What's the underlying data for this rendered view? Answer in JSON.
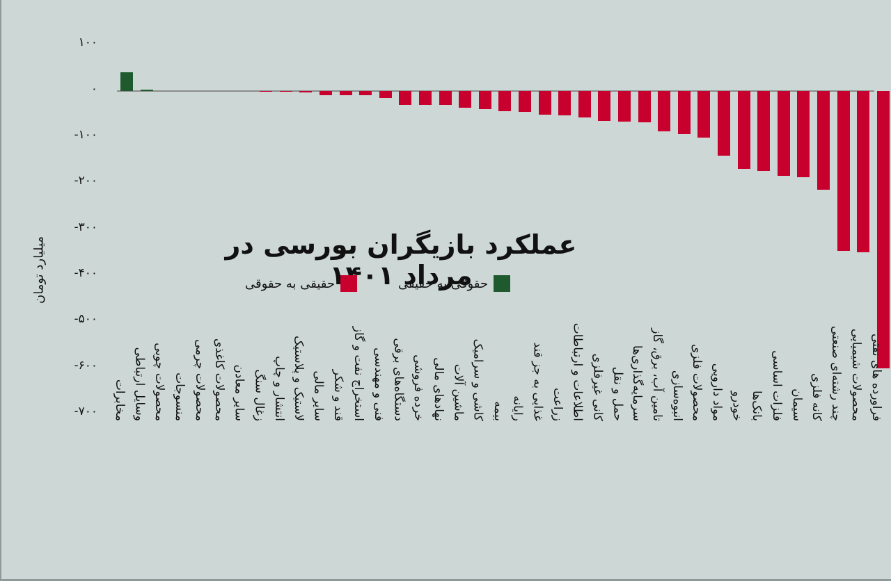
{
  "chart_data": {
    "type": "bar",
    "title": "عملکرد بازیگران بورسی در مرداد ۱۴۰۱",
    "xlabel": "",
    "ylabel": "میلیارد تومان",
    "ylim": [
      -700,
      100
    ],
    "yticks": [
      100,
      0,
      -100,
      -200,
      -300,
      -400,
      -500,
      -600,
      -700
    ],
    "ytick_labels": [
      "۱۰۰",
      "۰",
      "-۱۰۰",
      "-۲۰۰",
      "-۳۰۰",
      "-۴۰۰",
      "-۵۰۰",
      "-۶۰۰",
      "-۷۰۰"
    ],
    "grid": false,
    "legend_position": "center",
    "legend": [
      {
        "label": "حقوقی به حقیقی",
        "color": "#1e5a2e"
      },
      {
        "label": "حقیقی به حقوقی",
        "color": "#c8002d"
      }
    ],
    "categories": [
      "مخابرات",
      "وسایل ارتباطی",
      "محصولات چوبی",
      "منسوجات",
      "محصولات چرمی",
      "محصولات کاغذی",
      "سایر معادن",
      "زغال سنگ",
      "انتشار و چاپ",
      "لاستیک و پلاستیک",
      "سایر مالی",
      "قند و شکر",
      "استخراج نفت و گاز",
      "فنی و مهندسی",
      "دستگاه‌های برقی",
      "خرده فروشی",
      "نهادهای مالی",
      "ماشین آلات",
      "کاشی و سرامیک",
      "بیمه",
      "رایانه",
      "غذایی به جز قند",
      "زراعت",
      "اطلاعات و ارتباطات",
      "کانی غیرفلزی",
      "حمل و نقل",
      "سرمایه‌گذاری‌ها",
      "تامین آب، برق، گاز",
      "انبوه‌سازی",
      "محصولات فلزی",
      "مواد دارویی",
      "خودرو",
      "بانک‌ها",
      "فلزات اساسی",
      "سیمان",
      "کانه فلزی",
      "چند رشته‌ای صنعتی",
      "محصولات شیمیایی",
      "فراورده های نفتی"
    ],
    "values": [
      40,
      3,
      0,
      0,
      0,
      0,
      0,
      -2,
      -2,
      -4,
      -9,
      -9,
      -9,
      -15,
      -31,
      -31,
      -31,
      -36,
      -39,
      -44,
      -45,
      -51,
      -53,
      -58,
      -66,
      -67,
      -69,
      -88,
      -94,
      -101,
      -141,
      -170,
      -174,
      -184,
      -187,
      -215,
      -348,
      -351,
      -602
    ],
    "colors": [
      "#1e5a2e",
      "#1e5a2e",
      "#c8002d",
      "#c8002d",
      "#c8002d",
      "#c8002d",
      "#c8002d",
      "#c8002d",
      "#c8002d",
      "#c8002d",
      "#c8002d",
      "#c8002d",
      "#c8002d",
      "#c8002d",
      "#c8002d",
      "#c8002d",
      "#c8002d",
      "#c8002d",
      "#c8002d",
      "#c8002d",
      "#c8002d",
      "#c8002d",
      "#c8002d",
      "#c8002d",
      "#c8002d",
      "#c8002d",
      "#c8002d",
      "#c8002d",
      "#c8002d",
      "#c8002d",
      "#c8002d",
      "#c8002d",
      "#c8002d",
      "#c8002d",
      "#c8002d",
      "#c8002d",
      "#c8002d",
      "#c8002d",
      "#c8002d"
    ]
  },
  "colors": {
    "background": "#cdd8d6",
    "positive": "#1e5a2e",
    "negative": "#c8002d",
    "axis": "#8c8c8c"
  }
}
